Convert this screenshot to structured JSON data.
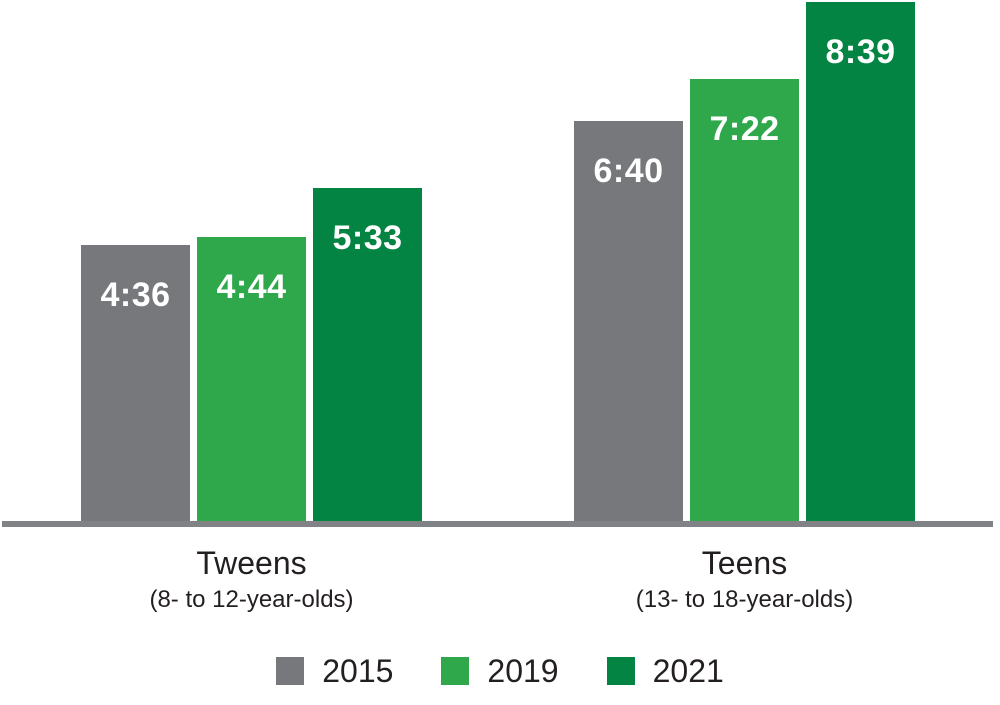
{
  "chart_data": {
    "type": "bar",
    "title": "",
    "xlabel": "",
    "ylabel": "",
    "value_format": "h:mm",
    "grid": false,
    "legend_position": "bottom",
    "axis_color": "#808285",
    "text_color": "#231f20",
    "value_label_color": "#ffffff",
    "categories": [
      {
        "label": "Tweens",
        "sublabel": "(8- to 12-year-olds)"
      },
      {
        "label": "Teens",
        "sublabel": "(13- to 18-year-olds)"
      }
    ],
    "series": [
      {
        "name": "2015",
        "color": "#77787b",
        "values": [
          {
            "label": "4:36",
            "minutes": 276
          },
          {
            "label": "6:40",
            "minutes": 400
          }
        ]
      },
      {
        "name": "2019",
        "color": "#2fa84c",
        "values": [
          {
            "label": "4:44",
            "minutes": 284
          },
          {
            "label": "7:22",
            "minutes": 442
          }
        ]
      },
      {
        "name": "2021",
        "color": "#048442",
        "values": [
          {
            "label": "5:33",
            "minutes": 333
          },
          {
            "label": "8:39",
            "minutes": 519
          }
        ]
      }
    ]
  }
}
